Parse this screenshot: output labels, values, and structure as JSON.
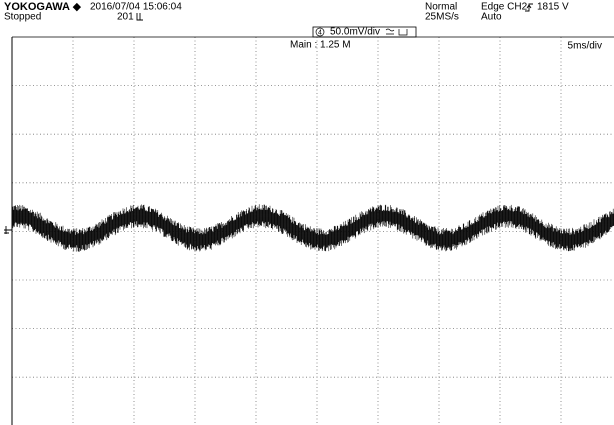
{
  "header": {
    "brand": "YOKOGAWA ◆",
    "status": "Stopped",
    "datetime": "2016/07/04 15:06:04",
    "count": "201",
    "mode": "Normal",
    "sample_rate": "25MS/s",
    "trigger_source": "Edge CH2",
    "trigger_level": "1815 V",
    "trigger_mode": "Auto"
  },
  "channel": {
    "number": "4",
    "scale": "50.0mV/div"
  },
  "record": "Main : 1.25 M",
  "timebase": "5ms/div"
}
